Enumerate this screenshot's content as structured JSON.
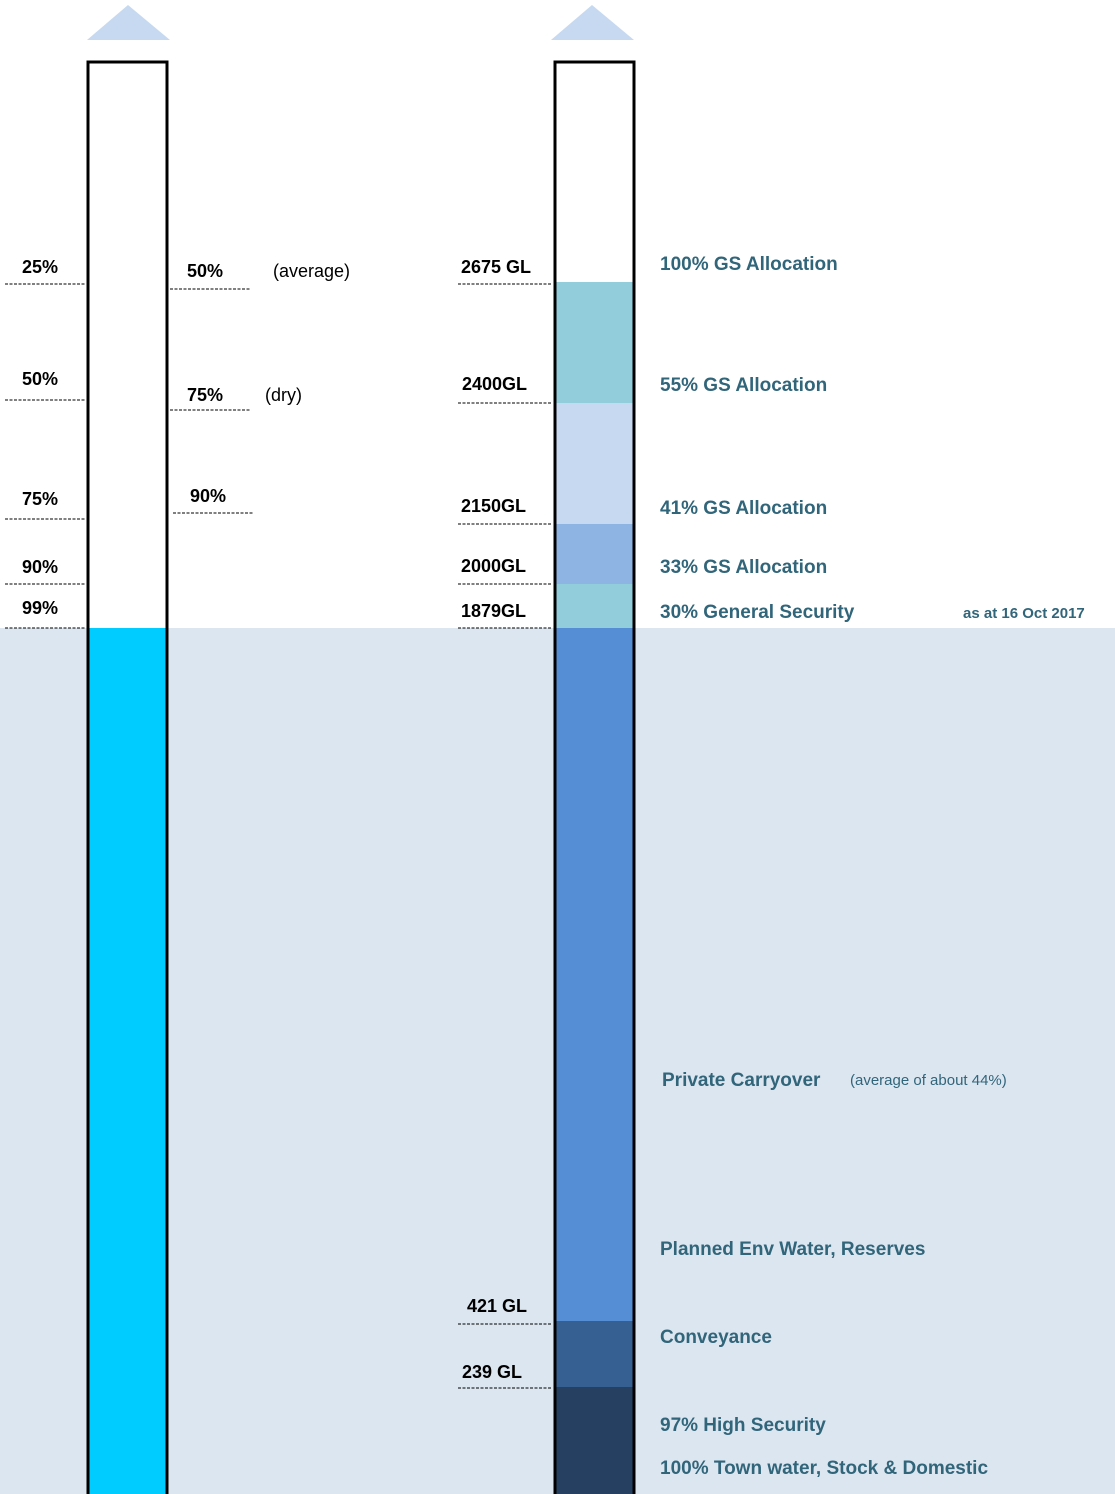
{
  "left_scale": {
    "labels": [
      "25%",
      "50%",
      "75%",
      "90%",
      "99%"
    ]
  },
  "middle_scale": {
    "labels": [
      "50%",
      "75%",
      "90%"
    ],
    "notes": [
      "(average)",
      "(dry)"
    ]
  },
  "volume_scale": {
    "labels": [
      "2675 GL",
      "2400GL",
      "2150GL",
      "2000GL",
      "1879GL",
      "421 GL",
      "239 GL"
    ]
  },
  "allocations": {
    "labels": [
      "100% GS Allocation",
      "55% GS Allocation",
      "41% GS Allocation",
      "33% GS Allocation",
      "30% General Security",
      "Private Carryover",
      "Planned Env Water, Reserves",
      "Conveyance",
      "97% High Security",
      "100% Town water, Stock & Domestic"
    ],
    "date_note": "as at 16 Oct 2017",
    "carryover_note": "(average of about 44%)"
  }
}
